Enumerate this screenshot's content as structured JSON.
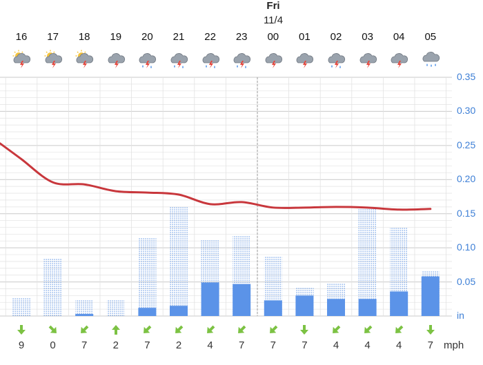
{
  "header": {
    "day": "Fri",
    "date": "11/4"
  },
  "hours": [
    "16",
    "17",
    "18",
    "19",
    "20",
    "21",
    "22",
    "23",
    "00",
    "01",
    "02",
    "03",
    "04",
    "05"
  ],
  "weather_icons": [
    "partly-sunny-thunderstorm-icon",
    "partly-sunny-thunderstorm-icon",
    "partly-sunny-thunderstorm-icon",
    "thunderstorm-icon",
    "thunderstorm-rain-icon",
    "thunderstorm-rain-icon",
    "thunderstorm-rain-icon",
    "thunderstorm-rain-icon",
    "thunderstorm-icon",
    "thunderstorm-icon",
    "thunderstorm-rain-icon",
    "thunderstorm-icon",
    "thunderstorm-icon",
    "heavy-rain-icon"
  ],
  "wind": {
    "unit": "mph",
    "speeds": [
      "9",
      "0",
      "7",
      "2",
      "7",
      "2",
      "4",
      "7",
      "7",
      "7",
      "4",
      "4",
      "4",
      "7"
    ],
    "directions_deg": [
      270,
      225,
      315,
      90,
      315,
      315,
      315,
      315,
      315,
      270,
      315,
      315,
      315,
      270
    ]
  },
  "colors": {
    "line": "#c8373c",
    "bar": "#5b93e8",
    "bar_dotted": "#4a86e0",
    "axis_text": "#3d7fd6",
    "grid": "#d6d6d6",
    "arrow": "#7cc243"
  },
  "chart_data": {
    "type": "bar",
    "categories": [
      "16",
      "17",
      "18",
      "19",
      "20",
      "21",
      "22",
      "23",
      "00",
      "01",
      "02",
      "03",
      "04",
      "05"
    ],
    "series": [
      {
        "values": [
          0,
          0,
          0.003,
          0,
          0.012,
          0.015,
          0.049,
          0.047,
          0.023,
          0.03,
          0.025,
          0.025,
          0.036,
          0.058
        ]
      },
      {
        "values": [
          0.026,
          0.085,
          0.023,
          0.023,
          0.115,
          0.16,
          0.112,
          0.118,
          0.088,
          0.041,
          0.048,
          0.158,
          0.129,
          0.066
        ]
      },
      {
        "type": "line",
        "values": [
          0.23,
          0.196,
          0.193,
          0.183,
          0.181,
          0.178,
          0.164,
          0.167,
          0.159,
          0.159,
          0.16,
          0.159,
          0.156,
          0.157
        ]
      }
    ],
    "yticks": [
      "0.35",
      "0.30",
      "0.25",
      "0.20",
      "0.15",
      "0.10",
      "0.05",
      "in"
    ],
    "ylim": [
      0,
      0.35
    ]
  }
}
